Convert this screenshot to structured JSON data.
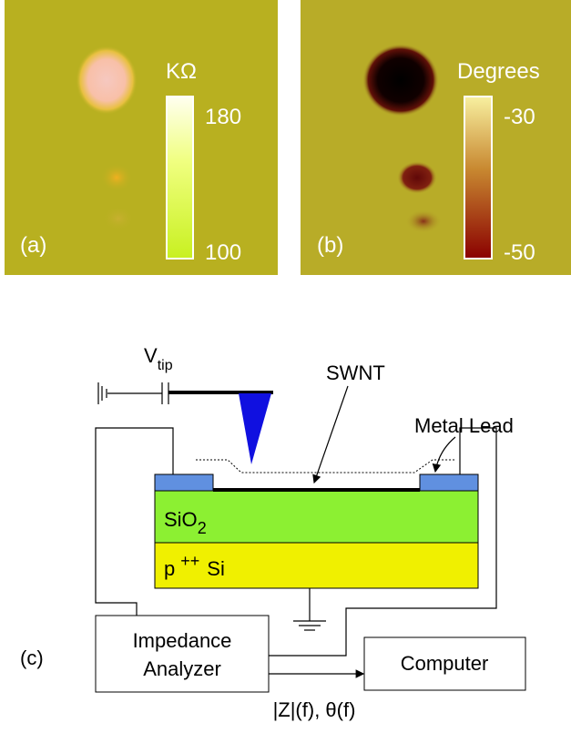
{
  "panel_a": {
    "label": "(a)",
    "unit": "KΩ",
    "scale_max": "180",
    "scale_min": "100"
  },
  "panel_b": {
    "label": "(b)",
    "unit": "Degrees",
    "scale_max": "-30",
    "scale_min": "-50"
  },
  "panel_c": {
    "label": "(c)",
    "tip_voltage": "V",
    "tip_subscript": "tip",
    "nanotube": "SWNT",
    "lead": "Metal Lead",
    "oxide": "SiO",
    "oxide_subscript": "2",
    "substrate_p": "p",
    "substrate_doping": "++",
    "substrate_si": "Si",
    "analyzer_line1": "Impedance",
    "analyzer_line2": "Analyzer",
    "computer": "Computer",
    "output": "|Z|(f), θ(f)"
  }
}
